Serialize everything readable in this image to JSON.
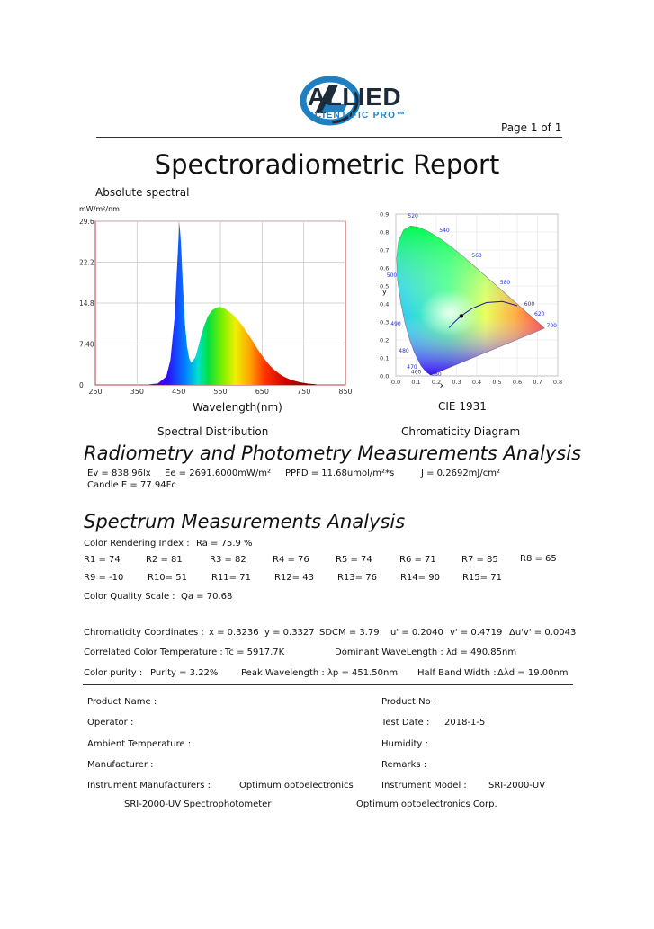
{
  "header": {
    "logo_text": "ALLIED",
    "logo_sub": "SCIENTIFIC PRO™",
    "page_label": "Page 1 of 1"
  },
  "title": "Spectroradiometric Report",
  "spectrum_chart": {
    "label": "Absolute spectral",
    "unit": "mW/m²/nm",
    "xlabel": "Wavelength(nm)",
    "caption": "Spectral Distribution",
    "x_ticks": [
      "250",
      "350",
      "450",
      "550",
      "650",
      "750",
      "850"
    ],
    "y_ticks": [
      "0",
      "7.40",
      "14.8",
      "22.2",
      "29.6"
    ]
  },
  "cie_chart": {
    "xlabel": "x",
    "ylabel": "y",
    "title": "CIE 1931",
    "caption": "Chromaticity Diagram",
    "x_ticks": [
      "0.0",
      "0.1",
      "0.2",
      "0.3",
      "0.4",
      "0.5",
      "0.6",
      "0.7",
      "0.8"
    ],
    "y_ticks": [
      "0.0",
      "0.1",
      "0.2",
      "0.3",
      "0.4",
      "0.5",
      "0.6",
      "0.7",
      "0.8",
      "0.9"
    ],
    "wl_labels": [
      "520",
      "540",
      "560",
      "580",
      "600",
      "620",
      "700",
      "500",
      "490",
      "480",
      "470",
      "460",
      "380"
    ]
  },
  "chart_data": [
    {
      "type": "area",
      "title": "Absolute spectral",
      "xlabel": "Wavelength(nm)",
      "ylabel": "mW/m²/nm",
      "xlim": [
        250,
        850
      ],
      "ylim": [
        0,
        29.6
      ],
      "x": [
        380,
        400,
        420,
        430,
        440,
        445,
        451.5,
        455,
        460,
        465,
        470,
        475,
        480,
        490,
        500,
        510,
        520,
        530,
        540,
        550,
        560,
        570,
        580,
        590,
        600,
        610,
        620,
        630,
        640,
        650,
        660,
        670,
        680,
        690,
        700,
        720,
        740,
        760,
        780
      ],
      "y": [
        0.1,
        0.3,
        1.5,
        4.5,
        12,
        20,
        29.4,
        26,
        18,
        11,
        7,
        4.8,
        4.0,
        5.0,
        7.8,
        10.5,
        12.4,
        13.5,
        14.0,
        14.1,
        13.8,
        13.3,
        12.7,
        11.9,
        11.0,
        9.9,
        8.8,
        7.6,
        6.4,
        5.3,
        4.3,
        3.4,
        2.7,
        2.1,
        1.6,
        0.9,
        0.5,
        0.25,
        0.1
      ]
    },
    {
      "type": "scatter",
      "title": "CIE 1931",
      "xlabel": "x",
      "ylabel": "y",
      "xlim": [
        0,
        0.8
      ],
      "ylim": [
        0,
        0.9
      ],
      "x": [
        0.3236
      ],
      "y": [
        0.3327
      ]
    }
  ],
  "radiometry": {
    "heading": "Radiometry and Photometry Measurements Analysis",
    "ev": "Ev = 838.96lx",
    "ee": "Ee = 2691.6000mW/m²",
    "ppfd": "PPFD = 11.68umol/m²*s",
    "j": "J = 0.2692mJ/cm²",
    "candle": "Candle E = 77.94Fc"
  },
  "spectrum": {
    "heading": "Spectrum Measurements Analysis",
    "cri_label": "Color Rendering Index :",
    "cri_value": "Ra = 75.9 %",
    "r_row1": [
      "R1 = 74",
      "R2 = 81",
      "R3 = 82",
      "R4 = 76",
      "R5 = 74",
      "R6 = 71",
      "R7 = 85",
      "R8 = 65"
    ],
    "r_row2": [
      "R9 = -10",
      "R10= 51",
      "R11= 71",
      "R12= 43",
      "R13= 76",
      "R14= 90",
      "R15= 71"
    ],
    "cqs_label": "Color Quality Scale :",
    "cqs_value": "Qa = 70.68",
    "chroma_label": "Chromaticity Coordinates :",
    "x": "x = 0.3236",
    "y": "y = 0.3327",
    "sdcm": "SDCM = 3.79",
    "u": "u' = 0.2040",
    "v": "v' = 0.4719",
    "duv": "Δu'v' = 0.0043",
    "cct_label": "Correlated Color Temperature :",
    "cct_value": "Tc = 5917.7K",
    "dom_label": "Dominant WaveLength :",
    "dom_value": "λd = 490.85nm",
    "purity_label": "Color purity :",
    "purity_value": "Purity = 3.22%",
    "peak_label": "Peak Wavelength :",
    "peak_value": "λp = 451.50nm",
    "hbw_label": "Half Band Width :",
    "hbw_value": "Δλd = 19.00nm"
  },
  "product": {
    "name_label": "Product Name :",
    "no_label": "Product No :",
    "operator_label": "Operator :",
    "date_label": "Test Date :",
    "date_value": "2018-1-5",
    "ambient_label": "Ambient Temperature :",
    "humidity_label": "Humidity :",
    "manufacturer_label": "Manufacturer :",
    "remarks_label": "Remarks :",
    "inst_mfr_label": "Instrument Manufacturers :",
    "inst_mfr_value": "Optimum optoelectronics",
    "inst_model_label": "Instrument Model :",
    "inst_model_value": "SRI-2000-UV",
    "footer_left": "SRI-2000-UV Spectrophotometer",
    "footer_right": "Optimum optoelectronics Corp."
  }
}
